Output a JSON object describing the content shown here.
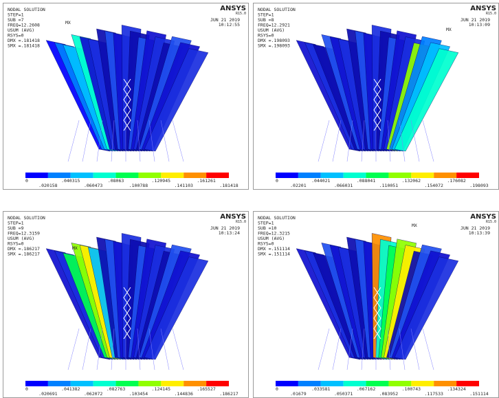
{
  "panels": [
    {
      "header": [
        "NODAL SOLUTION",
        "STEP=1",
        "SUB =7",
        "FREQ=12.2608",
        "USUM    (AVG)",
        "RSYS=0",
        "DMX =.181418",
        "SMX =.181418"
      ],
      "logo": "ANSYS",
      "version": "R15.0",
      "date": "JUN 21 2019",
      "time": "10:12:55",
      "max_label": "MX",
      "legend_upper": [
        "0",
        ".040315",
        ".08063",
        ".120945",
        ".161261"
      ],
      "legend_lower": [
        ".020158",
        ".060473",
        ".100788",
        ".141103",
        ".181418"
      ]
    },
    {
      "header": [
        "NODAL SOLUTION",
        "STEP=1",
        "SUB =8",
        "FREQ=12.2921",
        "USUM    (AVG)",
        "RSYS=0",
        "DMX =.198093",
        "SMX =.198093"
      ],
      "logo": "ANSYS",
      "version": "R15.0",
      "date": "JUN 21 2019",
      "time": "10:13:09",
      "max_label": "MX",
      "legend_upper": [
        "0",
        ".044021",
        ".088041",
        ".132062",
        ".176082"
      ],
      "legend_lower": [
        ".02201",
        ".066031",
        ".110051",
        ".154072",
        ".198093"
      ]
    },
    {
      "header": [
        "NODAL SOLUTION",
        "STEP=1",
        "SUB =9",
        "FREQ=12.3159",
        "USUM    (AVG)",
        "RSYS=0",
        "DMX =.186217",
        "SMX =.186217"
      ],
      "logo": "ANSYS",
      "version": "R15.0",
      "date": "JUN 21 2019",
      "time": "10:13:24",
      "max_label": "MX",
      "legend_upper": [
        "0",
        ".041382",
        ".082763",
        ".124145",
        ".165527"
      ],
      "legend_lower": [
        ".020691",
        ".062072",
        ".103454",
        ".144836",
        ".186217"
      ]
    },
    {
      "header": [
        "NODAL SOLUTION",
        "STEP=1",
        "SUB =10",
        "FREQ=12.3215",
        "USUM    (AVG)",
        "RSYS=0",
        "DMX =.151114",
        "SMX =.151114"
      ],
      "logo": "ANSYS",
      "version": "R15.0",
      "date": "JUN 21 2019",
      "time": "10:13:39",
      "max_label": "MX",
      "legend_upper": [
        "0",
        ".033581",
        ".067162",
        ".100743",
        ".134324"
      ],
      "legend_lower": [
        ".01679",
        ".050371",
        ".083952",
        ".117533",
        ".151114"
      ]
    }
  ]
}
